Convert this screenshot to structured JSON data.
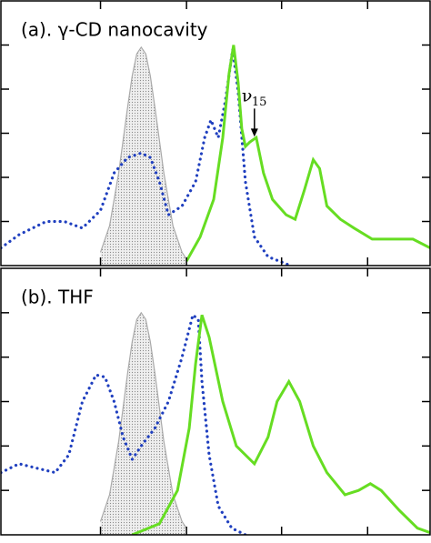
{
  "chart_data": [
    {
      "type": "line",
      "title": "(a). γ-CD nanocavity",
      "xlim": [
        0,
        474
      ],
      "xticks": [
        110,
        205,
        310,
        405
      ],
      "ylim": [
        0,
        1.2
      ],
      "yticks": [
        0.2,
        0.4,
        0.6,
        0.8,
        1.0
      ],
      "annotation": {
        "text": "ν",
        "sub": "15",
        "x": 280,
        "y": 0.58
      },
      "series": [
        {
          "color": "#aaaaaa",
          "fill": true,
          "style": "solid",
          "x": [
            110,
            120,
            130,
            140,
            145,
            150,
            155,
            160,
            165,
            170,
            180,
            190,
            200,
            205
          ],
          "values": [
            0.06,
            0.18,
            0.42,
            0.72,
            0.86,
            0.96,
            0.99,
            0.96,
            0.86,
            0.72,
            0.42,
            0.18,
            0.06,
            0.03
          ]
        },
        {
          "color": "#1f3fbf",
          "fill": false,
          "style": "dotted",
          "x": [
            0,
            20,
            50,
            70,
            90,
            110,
            125,
            140,
            155,
            165,
            175,
            185,
            200,
            215,
            225,
            232,
            240,
            248,
            256,
            262,
            270,
            280,
            295,
            320
          ],
          "values": [
            0.08,
            0.14,
            0.2,
            0.2,
            0.17,
            0.25,
            0.42,
            0.49,
            0.51,
            0.49,
            0.38,
            0.23,
            0.27,
            0.38,
            0.58,
            0.66,
            0.58,
            0.75,
            0.98,
            0.79,
            0.38,
            0.13,
            0.04,
            0
          ]
        },
        {
          "color": "#66dd22",
          "fill": false,
          "style": "solid",
          "x": [
            205,
            220,
            235,
            245,
            252,
            257,
            262,
            266,
            270,
            275,
            282,
            290,
            300,
            315,
            325,
            335,
            345,
            352,
            360,
            375,
            390,
            410,
            435,
            455,
            474
          ],
          "values": [
            0.02,
            0.13,
            0.3,
            0.58,
            0.87,
            1.0,
            0.83,
            0.62,
            0.54,
            0.56,
            0.58,
            0.42,
            0.3,
            0.23,
            0.21,
            0.34,
            0.48,
            0.44,
            0.27,
            0.21,
            0.17,
            0.12,
            0.12,
            0.12,
            0.08
          ]
        }
      ]
    },
    {
      "type": "line",
      "title": "(b). THF",
      "xlim": [
        0,
        474
      ],
      "xticks": [
        110,
        205,
        310,
        405
      ],
      "ylim": [
        0,
        1.2
      ],
      "yticks": [
        0.2,
        0.4,
        0.6,
        0.8,
        1.0
      ],
      "series": [
        {
          "color": "#aaaaaa",
          "fill": true,
          "style": "solid",
          "x": [
            110,
            120,
            130,
            140,
            145,
            150,
            155,
            160,
            165,
            170,
            180,
            190,
            200,
            205
          ],
          "values": [
            0.06,
            0.18,
            0.42,
            0.73,
            0.87,
            0.97,
            1.0,
            0.97,
            0.87,
            0.73,
            0.42,
            0.18,
            0.06,
            0.03
          ]
        },
        {
          "color": "#1f3fbf",
          "fill": false,
          "style": "dotted",
          "x": [
            0,
            20,
            40,
            60,
            75,
            90,
            105,
            115,
            125,
            135,
            145,
            155,
            170,
            185,
            200,
            212,
            218,
            222,
            230,
            240,
            255,
            270
          ],
          "values": [
            0.28,
            0.32,
            0.3,
            0.28,
            0.36,
            0.6,
            0.72,
            0.71,
            0.6,
            0.44,
            0.34,
            0.4,
            0.48,
            0.6,
            0.8,
            0.99,
            0.97,
            0.69,
            0.36,
            0.13,
            0.03,
            0
          ]
        },
        {
          "color": "#66dd22",
          "fill": false,
          "style": "solid",
          "x": [
            145,
            175,
            195,
            208,
            215,
            222,
            230,
            245,
            260,
            280,
            295,
            305,
            318,
            330,
            345,
            360,
            380,
            395,
            408,
            420,
            440,
            460,
            474
          ],
          "values": [
            0,
            0.05,
            0.2,
            0.48,
            0.77,
            0.99,
            0.89,
            0.6,
            0.4,
            0.32,
            0.44,
            0.6,
            0.69,
            0.6,
            0.4,
            0.28,
            0.18,
            0.2,
            0.23,
            0.2,
            0.11,
            0.03,
            0.01
          ]
        }
      ]
    }
  ]
}
